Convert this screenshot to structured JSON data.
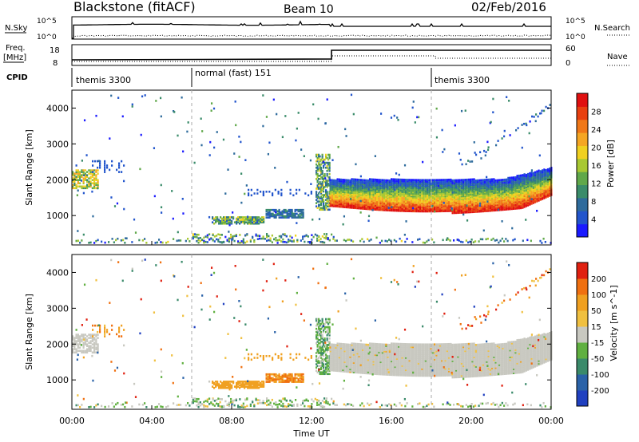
{
  "header": {
    "station": "Blackstone (fitACF)",
    "beam": "Beam 10",
    "date": "02/Feb/2016"
  },
  "left_labels": {
    "nsky": "N.Sky",
    "freq": "Freq.",
    "freq_unit": "[MHz]",
    "cpid": "CPID"
  },
  "right_labels": {
    "nsearch": "N.Search",
    "nave": "Nave"
  },
  "noise_ticks": [
    "10^5",
    "10^0"
  ],
  "freq_ticks": [
    "18",
    "8"
  ],
  "nave_ticks": [
    "60",
    "0"
  ],
  "cpid_segments": [
    {
      "label": "themis 3300",
      "start_h": 0
    },
    {
      "label": "normal (fast) 151",
      "start_h": 6
    },
    {
      "label": "themis 3300",
      "start_h": 18
    }
  ],
  "chart_data": [
    {
      "type": "heatmap",
      "name": "power-panel",
      "ylabel": "Slant Range [km]",
      "xlim": [
        0,
        24
      ],
      "ylim": [
        180,
        4500
      ],
      "yticks": [
        "1000",
        "2000",
        "3000",
        "4000"
      ],
      "colorbar": {
        "label": "Power [dB]",
        "ticks": [
          "4",
          "8",
          "12",
          "16",
          "20",
          "24",
          "28"
        ],
        "colors": [
          "#1a1aff",
          "#2255cc",
          "#2e6b9c",
          "#3a8c6a",
          "#60a84a",
          "#a8c832",
          "#f0d020",
          "#f5a623",
          "#f07818",
          "#e84010",
          "#e01010"
        ]
      },
      "bands": [
        {
          "name": "nightside-echoes",
          "start": 12.9,
          "end": 24,
          "inner_km": 1250,
          "outer_km": 2000
        }
      ]
    },
    {
      "type": "heatmap",
      "name": "velocity-panel",
      "ylabel": "Slant Range [km]",
      "xlabel": "Time UT",
      "xlim": [
        0,
        24
      ],
      "ylim": [
        180,
        4500
      ],
      "yticks": [
        "1000",
        "2000",
        "3000",
        "4000"
      ],
      "xticks": [
        "00:00",
        "04:00",
        "08:00",
        "12:00",
        "16:00",
        "20:00",
        "00:00"
      ],
      "colorbar": {
        "label": "Velocity [m s^-1]",
        "ticks": [
          "200",
          "100",
          "50",
          "15",
          "-15",
          "-50",
          "-100",
          "-200"
        ],
        "colors": [
          "#2040c0",
          "#2a62a8",
          "#3a8a6a",
          "#60b040",
          "#c8c8c0",
          "#f0c040",
          "#f0a020",
          "#f07010",
          "#e02010"
        ]
      }
    }
  ]
}
